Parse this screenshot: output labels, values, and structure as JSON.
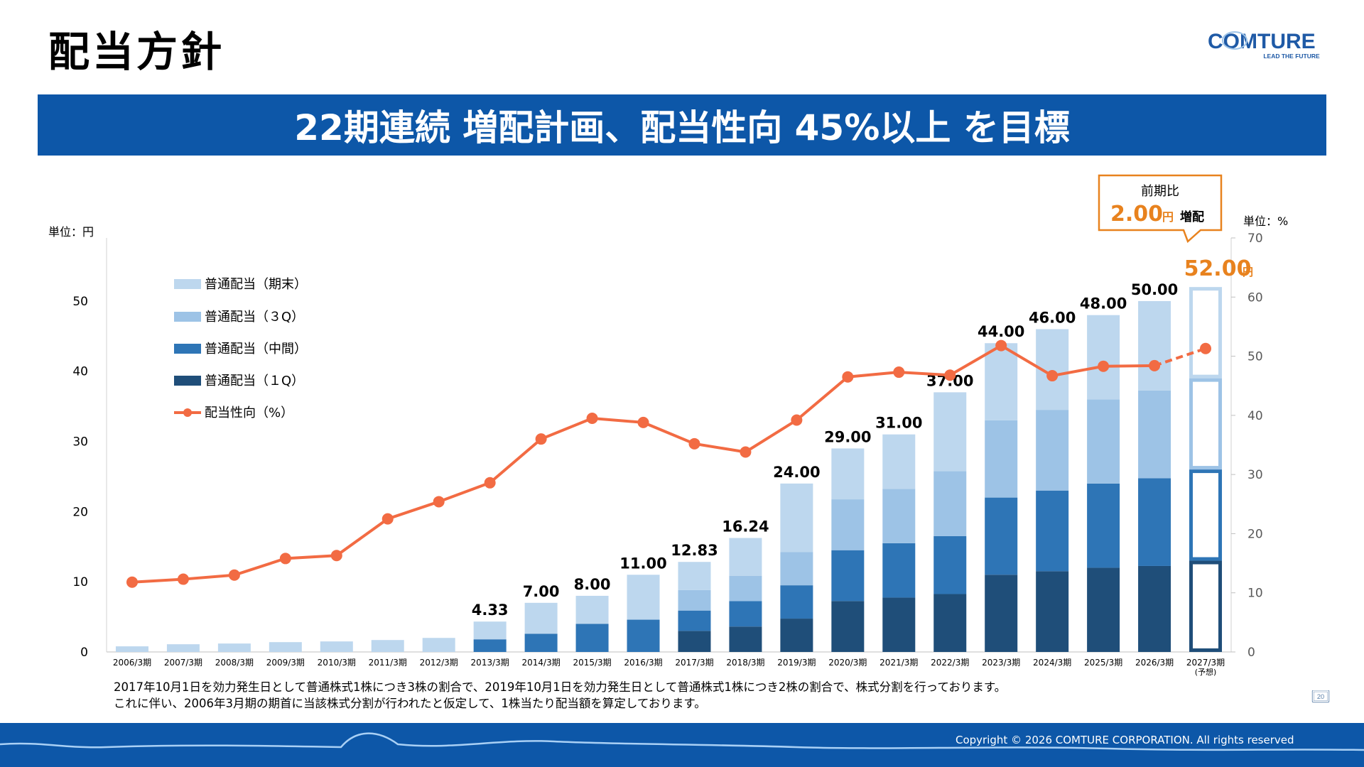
{
  "header": {
    "title": "配当方針",
    "banner": "22期連続 増配計画、配当性向 45%以上 を目標"
  },
  "logo": {
    "brand": "COMTURE",
    "tagline": "LEAD THE FUTURE"
  },
  "chart_data": {
    "type": "bar+line",
    "left_unit": "単位：円",
    "right_unit": "単位：%",
    "y_left": {
      "min": 0,
      "max": 59,
      "ticks": [
        0,
        10,
        20,
        30,
        40,
        50
      ]
    },
    "y_right": {
      "min": 0,
      "max": 70,
      "ticks": [
        0,
        10,
        20,
        30,
        40,
        50,
        60,
        70
      ]
    },
    "categories": [
      "2006/3期",
      "2007/3期",
      "2008/3期",
      "2009/3期",
      "2010/3期",
      "2011/3期",
      "2012/3期",
      "2013/3期",
      "2014/3期",
      "2015/3期",
      "2016/3期",
      "2017/3期",
      "2018/3期",
      "2019/3期",
      "2020/3期",
      "2021/3期",
      "2022/3期",
      "2023/3期",
      "2024/3期",
      "2025/3期",
      "2026/3期",
      "2027/3期"
    ],
    "forecast_note": "(予想)",
    "series": [
      {
        "name": "普通配当（１Q）",
        "color": "#1f4e79",
        "values": [
          0,
          0,
          0,
          0,
          0,
          0,
          0,
          0,
          0,
          0,
          0,
          3.0,
          3.62,
          4.75,
          7.25,
          7.75,
          8.25,
          11.0,
          11.5,
          12.0,
          12.25,
          13.0
        ]
      },
      {
        "name": "普通配当（中間）",
        "color": "#2e75b6",
        "values": [
          0,
          0,
          0,
          0,
          0,
          0,
          0,
          1.8,
          2.6,
          4.0,
          4.6,
          2.9,
          3.62,
          4.75,
          7.25,
          7.75,
          8.25,
          11.0,
          11.5,
          12.0,
          12.5,
          13.0
        ]
      },
      {
        "name": "普通配当（３Q）",
        "color": "#9dc3e6",
        "values": [
          0,
          0,
          0,
          0,
          0,
          0,
          0,
          0,
          0,
          0,
          0,
          2.93,
          3.62,
          4.75,
          7.25,
          7.75,
          9.25,
          11.0,
          11.5,
          12.0,
          12.5,
          13.0
        ]
      },
      {
        "name": "普通配当（期末）",
        "color": "#bdd7ee",
        "values": [
          0.8,
          1.1,
          1.2,
          1.4,
          1.5,
          1.7,
          2.0,
          2.53,
          4.4,
          4.0,
          6.4,
          4.0,
          5.38,
          9.75,
          7.25,
          7.75,
          11.25,
          11.0,
          11.5,
          12.0,
          12.75,
          13.0
        ]
      }
    ],
    "totals": [
      0.8,
      1.1,
      1.2,
      1.4,
      1.5,
      1.7,
      2.0,
      4.33,
      7.0,
      8.0,
      11.0,
      12.83,
      16.24,
      24.0,
      29.0,
      31.0,
      37.0,
      44.0,
      46.0,
      48.0,
      50.0,
      52.0
    ],
    "total_labels": [
      "",
      "",
      "",
      "",
      "",
      "",
      "",
      "4.33",
      "7.00",
      "8.00",
      "11.00",
      "12.83",
      "16.24",
      "24.00",
      "29.00",
      "31.00",
      "37.00",
      "44.00",
      "46.00",
      "48.00",
      "50.00",
      "52.00"
    ],
    "total_label_unit": "円",
    "payout_ratio": {
      "name": "配当性向（%）",
      "color": "#f26b43",
      "values": [
        11.8,
        12.3,
        13.0,
        15.8,
        16.3,
        22.5,
        25.4,
        28.6,
        36.0,
        39.5,
        38.8,
        35.2,
        33.8,
        39.2,
        46.5,
        47.3,
        46.8,
        51.8,
        46.7,
        48.3,
        48.4,
        51.3
      ]
    },
    "callout": {
      "line1": "前期比",
      "value": "2.00",
      "unit": "円",
      "suffix": "増配"
    }
  },
  "notes": [
    "2017年10月1日を効力発生日として普通株式1株につき3株の割合で、2019年10月1日を効力発生日として普通株式1株につき2株の割合で、株式分割を行っております。",
    "これに伴い、2006年3月期の期首に当該株式分割が行われたと仮定して、1株当たり配当額を算定しております。"
  ],
  "footer": {
    "copyright": "Copyright © 2026 COMTURE CORPORATION. All rights reserved",
    "page": "20"
  }
}
